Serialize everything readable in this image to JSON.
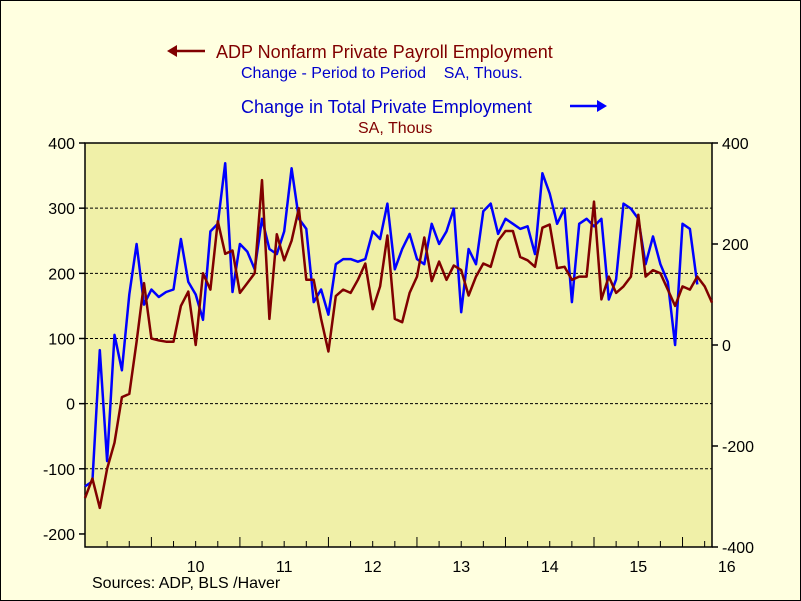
{
  "chart_data": {
    "type": "line",
    "titles": {
      "left_series_title": "ADP Nonfarm Private Payroll Employment",
      "left_series_subtitle": "Change - Period to Period    SA, Thous.",
      "right_series_title": "Change in Total Private Employment",
      "right_series_subtitle": "SA, Thous"
    },
    "source": "Sources:  ADP, BLS /Haver",
    "x_tick_labels": [
      "10",
      "11",
      "12",
      "13",
      "14",
      "15",
      "16"
    ],
    "x_start": 2009.25,
    "x_end": 2016.333,
    "left_axis": {
      "min": -220,
      "max": 400,
      "ticks": [
        400,
        300,
        200,
        100,
        0,
        -100,
        -200
      ]
    },
    "right_axis": {
      "min": -400,
      "max": 400,
      "ticks": [
        400,
        200,
        0,
        -200,
        -400
      ]
    },
    "grid_lines": [
      300,
      200,
      100,
      0,
      -100
    ],
    "colors": {
      "adp": "#800000",
      "bls": "#0000ff",
      "plot_bg": "#f0f0a8",
      "page_bg": "#ffffe0"
    },
    "series": [
      {
        "name": "ADP Nonfarm Private Payroll Employment",
        "axis": "left",
        "frequency": "monthly",
        "start": "2009-04",
        "values": [
          -145,
          -115,
          -160,
          -100,
          -60,
          10,
          15,
          95,
          185,
          100,
          97,
          95,
          95,
          150,
          172,
          90,
          200,
          175,
          280,
          230,
          235,
          170,
          185,
          200,
          343,
          130,
          260,
          220,
          250,
          300,
          190,
          190,
          130,
          80,
          165,
          175,
          170,
          190,
          215,
          145,
          180,
          258,
          130,
          125,
          170,
          195,
          255,
          188,
          218,
          190,
          212,
          205,
          166,
          195,
          215,
          210,
          250,
          265,
          265,
          225,
          220,
          210,
          270,
          275,
          208,
          210,
          190,
          195,
          195,
          310,
          160,
          195,
          170,
          180,
          195,
          290,
          195,
          205,
          200,
          175,
          150,
          180,
          175,
          195,
          180,
          155
        ]
      },
      {
        "name": "Change in Total Private Employment",
        "axis": "right",
        "frequency": "monthly",
        "start": "2009-04",
        "values": [
          -280,
          -270,
          -10,
          -230,
          20,
          -50,
          100,
          200,
          80,
          110,
          95,
          105,
          110,
          210,
          125,
          100,
          50,
          225,
          240,
          360,
          105,
          200,
          185,
          150,
          250,
          190,
          180,
          225,
          350,
          250,
          230,
          85,
          110,
          60,
          160,
          170,
          170,
          165,
          170,
          225,
          210,
          280,
          150,
          190,
          220,
          170,
          160,
          240,
          200,
          225,
          270,
          65,
          190,
          160,
          265,
          280,
          220,
          250,
          240,
          230,
          235,
          180,
          340,
          300,
          240,
          270,
          85,
          240,
          250,
          235,
          250,
          90,
          130,
          280,
          270,
          250,
          160,
          215,
          160,
          125,
          0,
          240,
          230,
          120
        ]
      }
    ]
  }
}
